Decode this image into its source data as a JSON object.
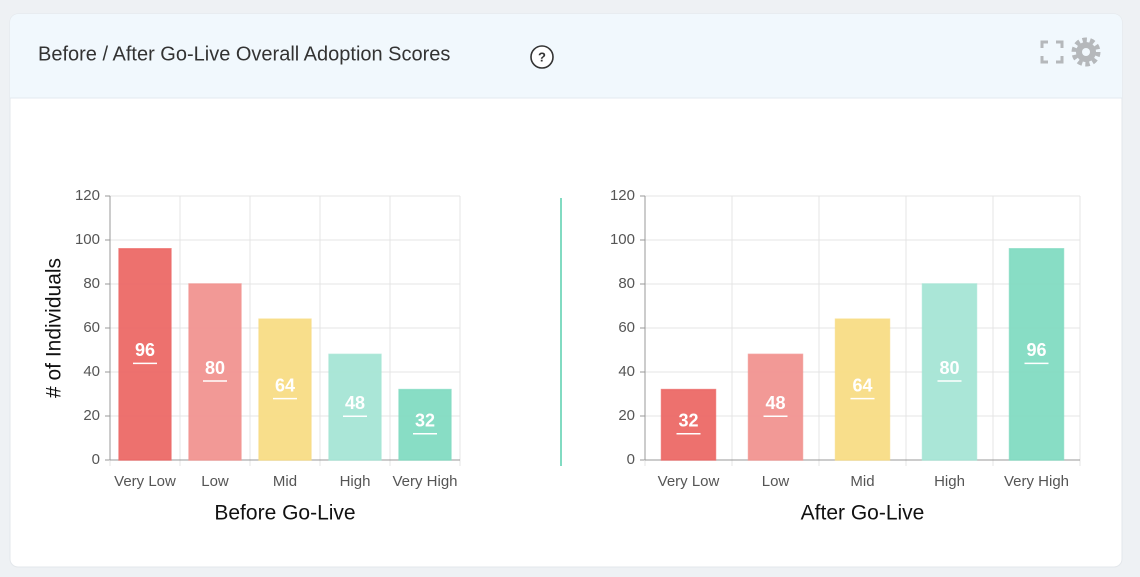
{
  "panel": {
    "title": "Before / After Go-Live Overall Adoption Scores",
    "help_icon": "?"
  },
  "chart_data": [
    {
      "type": "bar",
      "y_label": "# of Individuals",
      "x_label": "Before Go-Live",
      "categories": [
        "Very Low",
        "Low",
        "Mid",
        "High",
        "Very High"
      ],
      "values": [
        96,
        80,
        64,
        48,
        32
      ],
      "colors": [
        "#ec6966",
        "#f19390",
        "#f8dc85",
        "#a5e5d5",
        "#82dbc2"
      ],
      "ylim": [
        0,
        120
      ],
      "yticks": [
        0,
        20,
        40,
        60,
        80,
        100,
        120
      ],
      "grid": true
    },
    {
      "type": "bar",
      "x_label": "After Go-Live",
      "categories": [
        "Very Low",
        "Low",
        "Mid",
        "High",
        "Very High"
      ],
      "values": [
        32,
        48,
        64,
        80,
        96
      ],
      "colors": [
        "#ec6966",
        "#f19390",
        "#f8dc85",
        "#a5e5d5",
        "#82dbc2"
      ],
      "ylim": [
        0,
        120
      ],
      "yticks": [
        0,
        20,
        40,
        60,
        80,
        100,
        120
      ],
      "grid": true
    }
  ]
}
